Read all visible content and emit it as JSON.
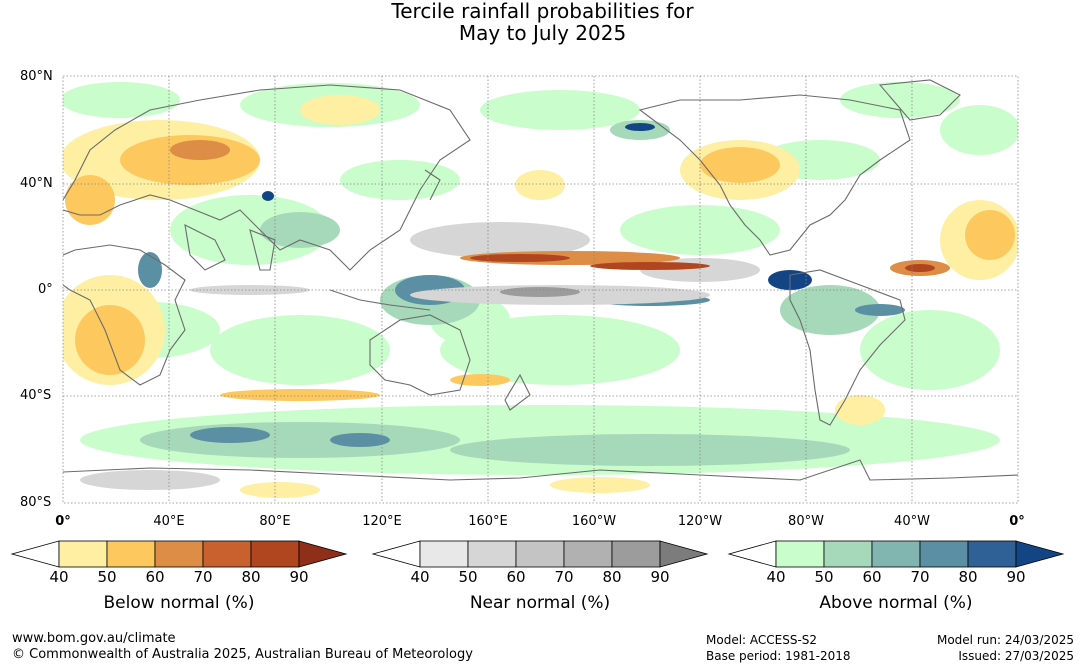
{
  "title": {
    "line1": "Tercile rainfall probabilities for",
    "line2": "May to July 2025"
  },
  "map": {
    "lat_labels": [
      "80°N",
      "40°N",
      "0°",
      "40°S",
      "80°S"
    ],
    "lon_labels": [
      "0°",
      "40°E",
      "80°E",
      "120°E",
      "160°E",
      "160°W",
      "120°W",
      "80°W",
      "40°W",
      "0°"
    ],
    "colors": {
      "ocean": "#ffffff",
      "land_outline": "#6b6b6b",
      "grid": "#888888"
    }
  },
  "legends": {
    "below": {
      "caption": "Below normal (%)",
      "ticks": [
        "40",
        "50",
        "60",
        "70",
        "80",
        "90"
      ],
      "colors": [
        "#ffffff",
        "#feefa3",
        "#fdc95f",
        "#de8d46",
        "#c9612f",
        "#b0461f",
        "#8f2f1a"
      ]
    },
    "near": {
      "caption": "Near normal (%)",
      "ticks": [
        "40",
        "50",
        "60",
        "70",
        "80",
        "90"
      ],
      "colors": [
        "#ffffff",
        "#e8e8e8",
        "#d6d6d6",
        "#c4c4c4",
        "#b1b1b1",
        "#9c9c9c",
        "#7c7c7c"
      ]
    },
    "above": {
      "caption": "Above normal (%)",
      "ticks": [
        "40",
        "50",
        "60",
        "70",
        "80",
        "90"
      ],
      "colors": [
        "#ffffff",
        "#c9fdcb",
        "#a6d9ba",
        "#80b5b0",
        "#5b90a4",
        "#2f6096",
        "#134585"
      ]
    }
  },
  "footer": {
    "url": "www.bom.gov.au/climate",
    "copyright": "© Commonwealth of Australia 2025, Australian Bureau of Meteorology",
    "model": "Model: ACCESS-S2",
    "base_period": "Base period: 1981-2018",
    "model_run": "Model run: 24/03/2025",
    "issued": "Issued: 27/03/2025"
  }
}
